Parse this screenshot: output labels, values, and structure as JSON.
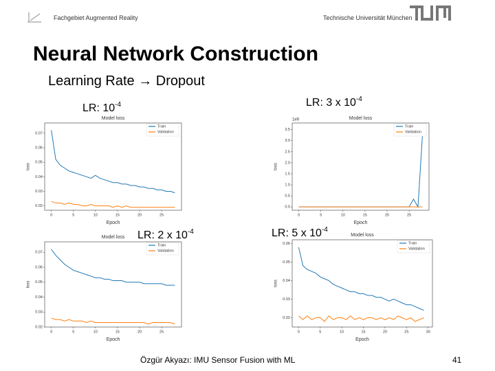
{
  "header": {
    "left": "Fachgebiet Augmented Reality",
    "right": "Technische Universität München"
  },
  "title": "Neural Network Construction",
  "subtitle": "Learning Rate → Dropout",
  "footer": {
    "text": "Özgür Akyazı: IMU Sensor Fusion with ML",
    "page": "41"
  },
  "panels": [
    {
      "label": "LR: 10",
      "label_exp": "-4",
      "chart": {
        "type": "line",
        "title": "Model loss",
        "xlabel": "Epoch",
        "ylabel": "loss",
        "x": [
          0,
          1,
          2,
          3,
          4,
          5,
          6,
          7,
          8,
          9,
          10,
          11,
          12,
          13,
          14,
          15,
          16,
          17,
          18,
          19,
          20,
          21,
          22,
          23,
          24,
          25,
          26,
          27,
          28
        ],
        "series": [
          {
            "name": "Train",
            "color": "#1f77b4",
            "values": [
              0.072,
              0.052,
              0.048,
              0.046,
              0.044,
              0.043,
              0.042,
              0.041,
              0.04,
              0.039,
              0.041,
              0.039,
              0.038,
              0.037,
              0.036,
              0.036,
              0.035,
              0.035,
              0.034,
              0.034,
              0.033,
              0.033,
              0.032,
              0.032,
              0.031,
              0.031,
              0.03,
              0.03,
              0.029
            ]
          },
          {
            "name": "Validation",
            "color": "#ff7f0e",
            "values": [
              0.023,
              0.022,
              0.022,
              0.021,
              0.022,
              0.021,
              0.021,
              0.02,
              0.02,
              0.021,
              0.02,
              0.02,
              0.02,
              0.02,
              0.019,
              0.02,
              0.019,
              0.02,
              0.019,
              0.019,
              0.019,
              0.019,
              0.019,
              0.019,
              0.019,
              0.019,
              0.019,
              0.019,
              0.019
            ]
          }
        ],
        "xlim": [
          -1.5,
          29.5
        ],
        "xticks": [
          0,
          5,
          10,
          15,
          20,
          25
        ],
        "ylim": [
          0.017,
          0.077
        ],
        "yticks": [
          0.02,
          0.03,
          0.04,
          0.05,
          0.06,
          0.07
        ],
        "legend": "upper right"
      }
    },
    {
      "label": "LR: 3 x 10",
      "label_exp": "-4",
      "chart": {
        "type": "line",
        "title": "Model loss",
        "xlabel": "Epoch",
        "ylabel": "loss",
        "offset_label": "1e9",
        "x": [
          0,
          1,
          2,
          3,
          4,
          5,
          6,
          7,
          8,
          9,
          10,
          11,
          12,
          13,
          14,
          15,
          16,
          17,
          18,
          19,
          20,
          21,
          22,
          23,
          24,
          25,
          26,
          27,
          28
        ],
        "series": [
          {
            "name": "Train",
            "color": "#1f77b4",
            "values": [
              0,
              0,
              0,
              0,
              0,
              0,
              0,
              0,
              0,
              0,
              0,
              0,
              0,
              0,
              0,
              0,
              0,
              0,
              0,
              0,
              0,
              0,
              0,
              0,
              0,
              0,
              0.35,
              0,
              3.2
            ]
          },
          {
            "name": "Validation",
            "color": "#ff7f0e",
            "values": [
              0,
              0,
              0,
              0,
              0,
              0,
              0,
              0,
              0,
              0,
              0,
              0,
              0,
              0,
              0,
              0,
              0,
              0,
              0,
              0,
              0,
              0,
              0,
              0,
              0,
              0,
              0,
              0,
              0
            ]
          }
        ],
        "xlim": [
          -1.5,
          29.5
        ],
        "xticks": [
          0,
          5,
          10,
          15,
          20,
          25
        ],
        "ylim": [
          -0.15,
          3.8
        ],
        "yticks": [
          {
            "value": 0,
            "label": "0.0"
          },
          0.5,
          {
            "value": 1,
            "label": "1.0"
          },
          1.5,
          {
            "value": 2,
            "label": "2.0"
          },
          2.5,
          {
            "value": 3,
            "label": "3.0"
          },
          3.5
        ],
        "legend": "upper right"
      }
    },
    {
      "label": "LR: 2 x 10",
      "label_exp": "-4",
      "chart": {
        "type": "line",
        "title": "Model loss",
        "xlabel": "Epoch",
        "ylabel": "loss",
        "x": [
          0,
          1,
          2,
          3,
          4,
          5,
          6,
          7,
          8,
          9,
          10,
          11,
          12,
          13,
          14,
          15,
          16,
          17,
          18,
          19,
          20,
          21,
          22,
          23,
          24,
          25,
          26,
          27,
          28
        ],
        "series": [
          {
            "name": "Train",
            "color": "#1f77b4",
            "values": [
              0.072,
              0.068,
              0.065,
              0.062,
              0.06,
              0.058,
              0.057,
              0.056,
              0.055,
              0.054,
              0.053,
              0.053,
              0.052,
              0.052,
              0.051,
              0.051,
              0.051,
              0.05,
              0.05,
              0.05,
              0.05,
              0.049,
              0.049,
              0.049,
              0.049,
              0.049,
              0.048,
              0.048,
              0.048
            ]
          },
          {
            "name": "Validation",
            "color": "#ff7f0e",
            "values": [
              0.026,
              0.025,
              0.025,
              0.024,
              0.025,
              0.024,
              0.024,
              0.024,
              0.023,
              0.024,
              0.023,
              0.023,
              0.023,
              0.023,
              0.023,
              0.023,
              0.023,
              0.023,
              0.023,
              0.023,
              0.023,
              0.023,
              0.022,
              0.023,
              0.023,
              0.023,
              0.023,
              0.023,
              0.022
            ]
          }
        ],
        "xlim": [
          -1.5,
          29.5
        ],
        "xticks": [
          0,
          5,
          10,
          15,
          20,
          25
        ],
        "ylim": [
          0.02,
          0.077
        ],
        "yticks": [
          0.02,
          0.03,
          0.04,
          0.05,
          0.06,
          0.07
        ],
        "legend": "upper right"
      }
    },
    {
      "label": "LR: 5 x 10",
      "label_exp": "-4",
      "chart": {
        "type": "line",
        "title": "Model loss",
        "xlabel": "Epoch",
        "ylabel": "loss",
        "x": [
          0,
          1,
          2,
          3,
          4,
          5,
          6,
          7,
          8,
          9,
          10,
          11,
          12,
          13,
          14,
          15,
          16,
          17,
          18,
          19,
          20,
          21,
          22,
          23,
          24,
          25,
          26,
          27,
          28,
          29
        ],
        "series": [
          {
            "name": "Train",
            "color": "#1f77b4",
            "values": [
              0.058,
              0.048,
              0.046,
              0.045,
              0.044,
              0.042,
              0.041,
              0.04,
              0.038,
              0.037,
              0.036,
              0.035,
              0.034,
              0.034,
              0.033,
              0.033,
              0.032,
              0.032,
              0.031,
              0.031,
              0.03,
              0.029,
              0.03,
              0.029,
              0.028,
              0.027,
              0.027,
              0.026,
              0.025,
              0.024
            ]
          },
          {
            "name": "Validation",
            "color": "#ff7f0e",
            "values": [
              0.021,
              0.019,
              0.021,
              0.019,
              0.02,
              0.02,
              0.018,
              0.021,
              0.019,
              0.02,
              0.02,
              0.019,
              0.021,
              0.019,
              0.02,
              0.019,
              0.02,
              0.02,
              0.019,
              0.02,
              0.019,
              0.02,
              0.019,
              0.021,
              0.02,
              0.019,
              0.02,
              0.018,
              0.019,
              0.02
            ]
          }
        ],
        "xlim": [
          -1.5,
          31
        ],
        "xticks": [
          0,
          5,
          10,
          15,
          20,
          25,
          30
        ],
        "ylim": [
          0.015,
          0.062
        ],
        "yticks": [
          0.02,
          0.03,
          0.04,
          0.05,
          0.06
        ],
        "legend": "upper right"
      }
    }
  ]
}
